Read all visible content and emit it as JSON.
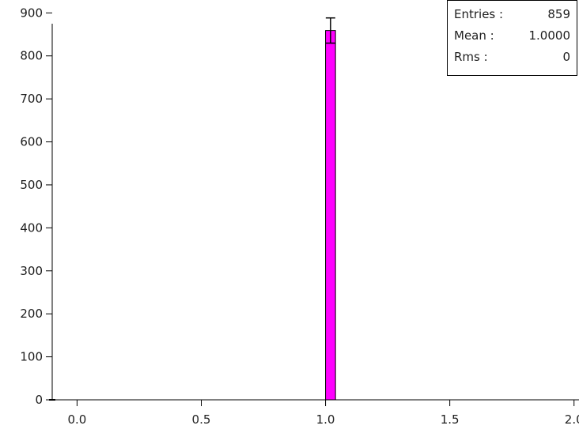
{
  "colors": {
    "bar_fill": "#ff00ff",
    "bar_stroke": "#000000",
    "axis": "#000000"
  },
  "stats": {
    "entries_label": "Entries :",
    "entries_value": "859",
    "mean_label": "Mean :",
    "mean_value": "1.0000",
    "rms_label": "Rms :",
    "rms_value": "0"
  },
  "chart_data": {
    "type": "bar",
    "title": "",
    "xlabel": "",
    "ylabel": "",
    "xlim": [
      -0.1,
      2.02
    ],
    "ylim": [
      0,
      930
    ],
    "x_ticks": [
      "0.0",
      "0.5",
      "1.0",
      "1.5",
      "2.0"
    ],
    "y_ticks": [
      "0",
      "100",
      "200",
      "300",
      "400",
      "500",
      "600",
      "700",
      "800",
      "900"
    ],
    "bins": [
      {
        "x_low": 1.0,
        "x_high": 1.04,
        "value": 859,
        "error": 29.3
      }
    ],
    "legend": "none",
    "grid": false
  }
}
